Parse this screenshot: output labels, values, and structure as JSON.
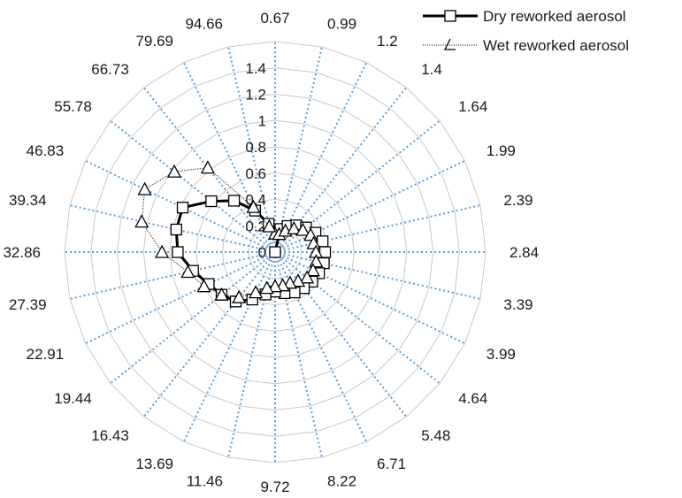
{
  "chart_data": {
    "type": "radar",
    "categories": [
      "0.67",
      "0.99",
      "1.2",
      "1.4",
      "1.64",
      "1.99",
      "2.39",
      "2.84",
      "3.39",
      "3.99",
      "4.64",
      "5.48",
      "6.71",
      "8.22",
      "9.72",
      "11.46",
      "13.69",
      "16.43",
      "19.44",
      "22.91",
      "27.39",
      "32.86",
      "39.34",
      "46.83",
      "55.78",
      "66.73",
      "79.69",
      "94.66"
    ],
    "radial_ticks": [
      "0",
      "0.2",
      "0.4",
      "0.6",
      "0.8",
      "1",
      "1.2",
      "1.4"
    ],
    "rmax": 1.6,
    "series": [
      {
        "name": "Dry reworked aerosol",
        "marker": "square",
        "values": [
          0.0,
          0.18,
          0.22,
          0.26,
          0.3,
          0.34,
          0.37,
          0.38,
          0.38,
          0.37,
          0.36,
          0.35,
          0.34,
          0.32,
          0.3,
          0.33,
          0.4,
          0.48,
          0.52,
          0.56,
          0.64,
          0.74,
          0.77,
          0.78,
          0.62,
          0.5,
          0.35,
          0.22
        ]
      },
      {
        "name": "Wet reworked aerosol",
        "marker": "triangle",
        "values": [
          0.14,
          0.14,
          0.18,
          0.23,
          0.27,
          0.3,
          0.3,
          0.31,
          0.32,
          0.32,
          0.31,
          0.28,
          0.26,
          0.26,
          0.26,
          0.28,
          0.34,
          0.44,
          0.52,
          0.6,
          0.68,
          0.86,
          1.04,
          1.1,
          0.98,
          0.82,
          0.38,
          0.2
        ]
      }
    ]
  }
}
